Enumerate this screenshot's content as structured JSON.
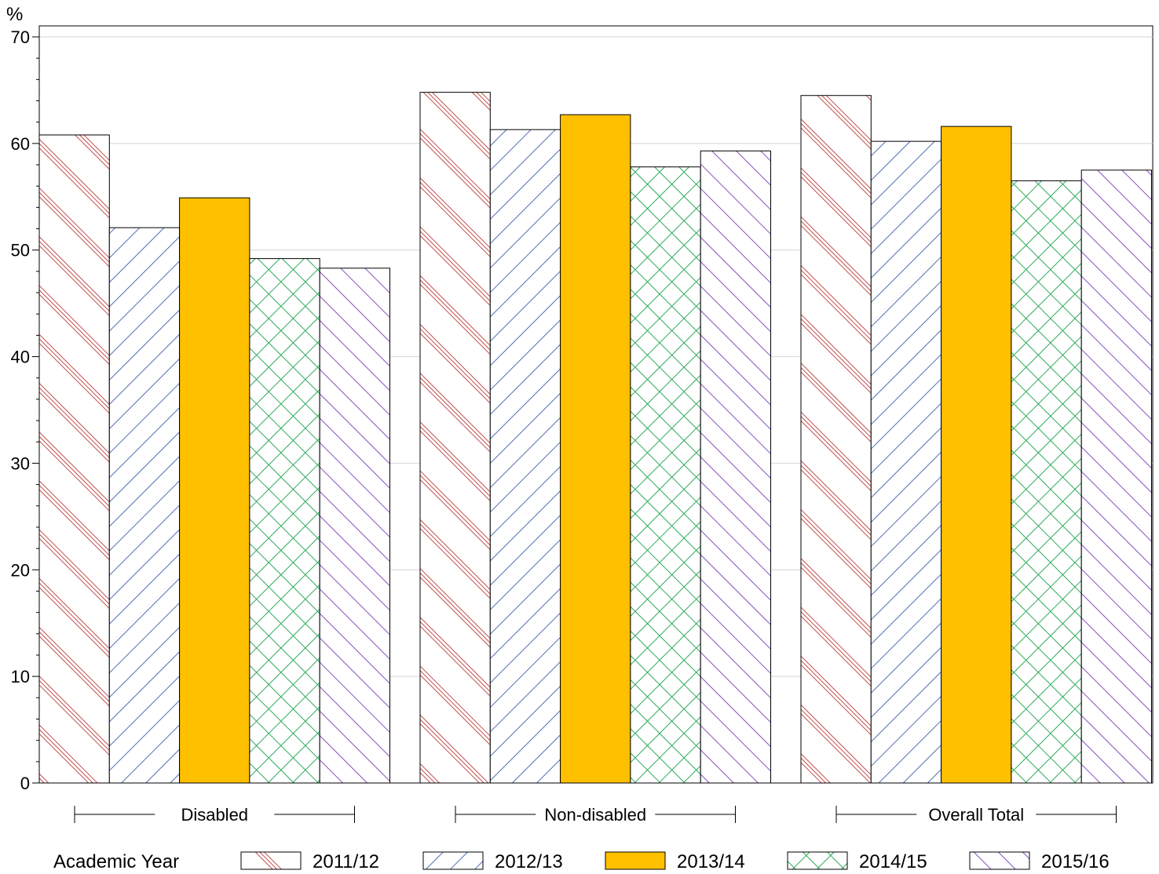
{
  "chart_data": {
    "type": "bar",
    "ylabel": "%",
    "ylim": [
      0,
      70
    ],
    "yticks": [
      "0",
      "10",
      "20",
      "30",
      "40",
      "50",
      "60",
      "70"
    ],
    "grid": true,
    "categories": [
      "Disabled",
      "Non-disabled",
      "Overall Total"
    ],
    "legend_title": "Academic Year",
    "legend_position": "bottom",
    "series": [
      {
        "name": "2011/12",
        "values": [
          60.8,
          64.8,
          64.5
        ],
        "color": "#c0504d",
        "pattern": "diag-up-triple"
      },
      {
        "name": "2012/13",
        "values": [
          52.1,
          61.3,
          60.2
        ],
        "color": "#4f6fb0",
        "pattern": "diag-down"
      },
      {
        "name": "2013/14",
        "values": [
          54.9,
          62.7,
          61.6
        ],
        "color": "#ffc000",
        "pattern": "solid"
      },
      {
        "name": "2014/15",
        "values": [
          49.2,
          57.8,
          56.5
        ],
        "color": "#2eaa5c",
        "pattern": "crosshatch"
      },
      {
        "name": "2015/16",
        "values": [
          48.3,
          59.3,
          57.5
        ],
        "color": "#8a4fbf",
        "pattern": "diag-up"
      }
    ]
  }
}
